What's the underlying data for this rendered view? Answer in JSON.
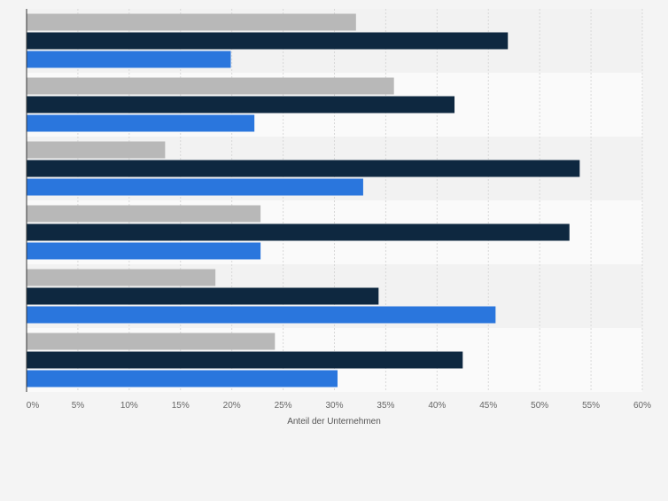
{
  "chart_data": {
    "type": "bar",
    "orientation": "horizontal",
    "title": "",
    "xlabel": "Anteil der Unternehmen",
    "ylabel": "",
    "xlim": [
      0,
      60
    ],
    "x_ticks": [
      {
        "value": 0,
        "label": "0%"
      },
      {
        "value": 5,
        "label": "5%"
      },
      {
        "value": 10,
        "label": "10%"
      },
      {
        "value": 15,
        "label": "15%"
      },
      {
        "value": 20,
        "label": "20%"
      },
      {
        "value": 25,
        "label": "25%"
      },
      {
        "value": 30,
        "label": "30%"
      },
      {
        "value": 35,
        "label": "35%"
      },
      {
        "value": 40,
        "label": "40%"
      },
      {
        "value": 45,
        "label": "45%"
      },
      {
        "value": 50,
        "label": "50%"
      },
      {
        "value": 55,
        "label": "55%"
      },
      {
        "value": 60,
        "label": "60%"
      }
    ],
    "grid": true,
    "legend": "none",
    "category_count": 6,
    "series": [
      {
        "color": "#b8b8b8",
        "values": [
          32.1,
          35.8,
          13.5,
          22.8,
          18.4,
          24.2
        ]
      },
      {
        "color": "#0e2840",
        "values": [
          46.9,
          41.7,
          53.9,
          52.9,
          34.3,
          42.5
        ]
      },
      {
        "color": "#2a76dd",
        "values": [
          19.9,
          22.2,
          32.8,
          22.8,
          45.7,
          30.3
        ]
      }
    ]
  }
}
